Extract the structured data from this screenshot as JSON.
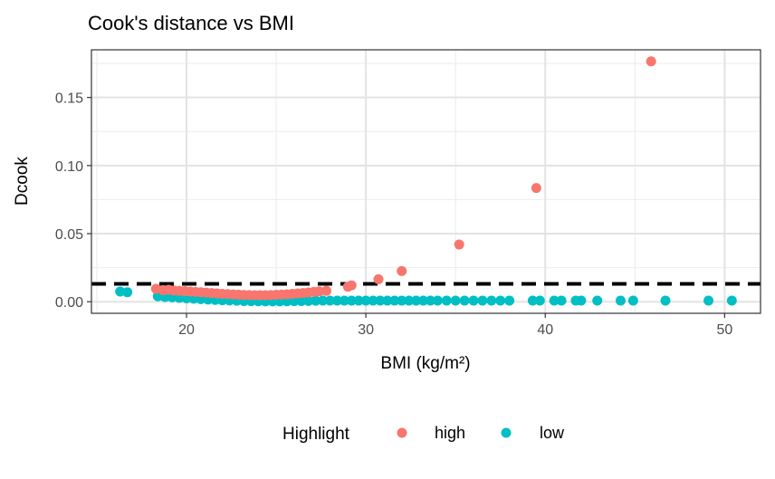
{
  "chart_data": {
    "type": "scatter",
    "title": "Cook's distance vs BMI",
    "xlabel": "BMI (kg/m²)",
    "ylabel": "Dcook",
    "xlim": [
      14.7,
      52.0
    ],
    "ylim": [
      -0.0085,
      0.185
    ],
    "x_ticks": [
      20,
      30,
      40,
      50
    ],
    "x_tick_labels": [
      "20",
      "30",
      "40",
      "50"
    ],
    "y_ticks": [
      0.0,
      0.05,
      0.1,
      0.15
    ],
    "y_tick_labels": [
      "0.00",
      "0.05",
      "0.10",
      "0.15"
    ],
    "grid": true,
    "threshold_line": {
      "y": 0.0131,
      "style": "dashed",
      "color": "#000000"
    },
    "legend": {
      "title": "Highlight",
      "position": "bottom",
      "entries": [
        {
          "label": "high",
          "color": "#F8766D"
        },
        {
          "label": "low",
          "color": "#00BFC4"
        }
      ]
    },
    "series": [
      {
        "name": "high",
        "color": "#F8766D",
        "points": [
          [
            18.3,
            0.0095
          ],
          [
            18.7,
            0.0085
          ],
          [
            19.0,
            0.0088
          ],
          [
            19.3,
            0.0082
          ],
          [
            19.6,
            0.008
          ],
          [
            19.9,
            0.0078
          ],
          [
            20.2,
            0.0075
          ],
          [
            20.5,
            0.0072
          ],
          [
            20.8,
            0.007
          ],
          [
            21.1,
            0.0067
          ],
          [
            21.4,
            0.0064
          ],
          [
            21.7,
            0.0061
          ],
          [
            22.0,
            0.0058
          ],
          [
            22.3,
            0.0056
          ],
          [
            22.6,
            0.0054
          ],
          [
            22.9,
            0.0052
          ],
          [
            23.2,
            0.005
          ],
          [
            23.5,
            0.0049
          ],
          [
            23.8,
            0.0048
          ],
          [
            24.1,
            0.0048
          ],
          [
            24.4,
            0.0048
          ],
          [
            24.7,
            0.0049
          ],
          [
            25.0,
            0.0051
          ],
          [
            25.3,
            0.0053
          ],
          [
            25.6,
            0.0055
          ],
          [
            25.9,
            0.0058
          ],
          [
            26.2,
            0.0061
          ],
          [
            26.5,
            0.0064
          ],
          [
            26.8,
            0.0068
          ],
          [
            27.1,
            0.0072
          ],
          [
            27.4,
            0.0076
          ],
          [
            27.8,
            0.008
          ],
          [
            29.0,
            0.011
          ],
          [
            29.2,
            0.012
          ],
          [
            30.7,
            0.0165
          ],
          [
            32.0,
            0.0225
          ],
          [
            35.2,
            0.042
          ],
          [
            39.5,
            0.0835
          ],
          [
            45.9,
            0.1765
          ]
        ]
      },
      {
        "name": "low",
        "color": "#00BFC4",
        "points": [
          [
            16.3,
            0.0075
          ],
          [
            16.7,
            0.007
          ],
          [
            18.4,
            0.004
          ],
          [
            18.8,
            0.0035
          ],
          [
            19.2,
            0.0032
          ],
          [
            19.6,
            0.0028
          ],
          [
            20.0,
            0.0025
          ],
          [
            20.4,
            0.0022
          ],
          [
            20.8,
            0.0019
          ],
          [
            21.2,
            0.0016
          ],
          [
            21.6,
            0.0013
          ],
          [
            22.0,
            0.0011
          ],
          [
            22.4,
            0.0009
          ],
          [
            22.8,
            0.0007
          ],
          [
            23.2,
            0.0005
          ],
          [
            23.6,
            0.0004
          ],
          [
            24.0,
            0.0003
          ],
          [
            24.4,
            0.0002
          ],
          [
            24.8,
            0.0002
          ],
          [
            25.2,
            0.0002
          ],
          [
            25.6,
            0.0003
          ],
          [
            26.0,
            0.0004
          ],
          [
            26.4,
            0.0005
          ],
          [
            26.8,
            0.0006
          ],
          [
            27.2,
            0.0007
          ],
          [
            27.6,
            0.0008
          ],
          [
            28.0,
            0.0008
          ],
          [
            28.4,
            0.0008
          ],
          [
            28.8,
            0.0008
          ],
          [
            29.2,
            0.0008
          ],
          [
            29.6,
            0.0008
          ],
          [
            30.0,
            0.0008
          ],
          [
            30.4,
            0.0008
          ],
          [
            30.8,
            0.0008
          ],
          [
            31.2,
            0.0008
          ],
          [
            31.6,
            0.0008
          ],
          [
            32.0,
            0.0008
          ],
          [
            32.4,
            0.0008
          ],
          [
            32.8,
            0.0008
          ],
          [
            33.2,
            0.0008
          ],
          [
            33.6,
            0.0008
          ],
          [
            34.0,
            0.0008
          ],
          [
            34.5,
            0.0008
          ],
          [
            35.0,
            0.0008
          ],
          [
            35.5,
            0.0008
          ],
          [
            36.0,
            0.0008
          ],
          [
            36.5,
            0.0008
          ],
          [
            37.0,
            0.0008
          ],
          [
            37.5,
            0.0008
          ],
          [
            38.0,
            0.0008
          ],
          [
            39.3,
            0.0008
          ],
          [
            39.7,
            0.0008
          ],
          [
            40.5,
            0.0008
          ],
          [
            40.9,
            0.0008
          ],
          [
            41.7,
            0.0008
          ],
          [
            42.0,
            0.0008
          ],
          [
            42.9,
            0.0008
          ],
          [
            44.2,
            0.0008
          ],
          [
            44.9,
            0.0008
          ],
          [
            46.7,
            0.0008
          ],
          [
            49.1,
            0.0008
          ],
          [
            50.4,
            0.0008
          ]
        ]
      }
    ]
  }
}
